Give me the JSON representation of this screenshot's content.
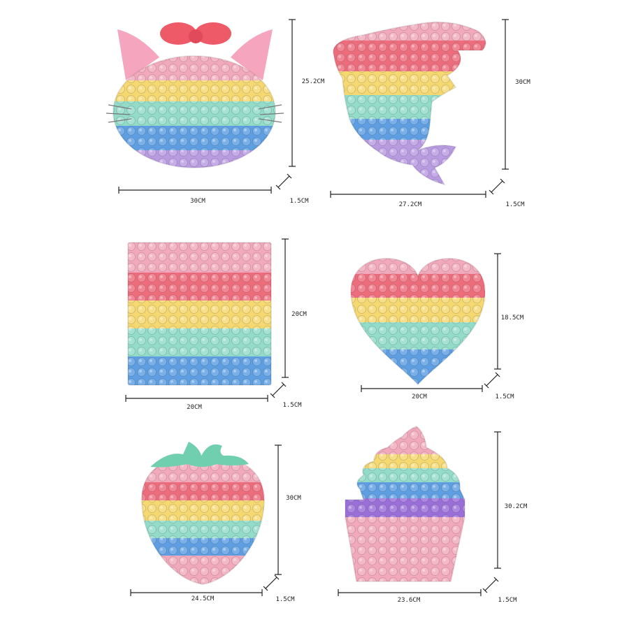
{
  "colors": {
    "pink": "#f2a9bb",
    "red": "#ee6d7d",
    "yellow": "#f5d870",
    "teal": "#92dcc9",
    "blue": "#5d9fe2",
    "purple": "#b99be2",
    "violet": "#9a6fd8",
    "bow": "#ee5a68",
    "leaf": "#6fcfae",
    "line": "#222222"
  },
  "products": [
    {
      "shape": "cat",
      "height": "25.2CM",
      "width": "30CM",
      "thickness": "1.5CM"
    },
    {
      "shape": "dolphin",
      "height": "30CM",
      "width": "27.2CM",
      "thickness": "1.5CM"
    },
    {
      "shape": "square",
      "height": "20CM",
      "width": "20CM",
      "thickness": "1.5CM"
    },
    {
      "shape": "heart",
      "height": "18.5CM",
      "width": "20CM",
      "thickness": "1.5CM"
    },
    {
      "shape": "strawberry",
      "height": "30CM",
      "width": "24.5CM",
      "thickness": "1.5CM"
    },
    {
      "shape": "cupcake",
      "height": "30.2CM",
      "width": "23.6CM",
      "thickness": "1.5CM"
    }
  ]
}
